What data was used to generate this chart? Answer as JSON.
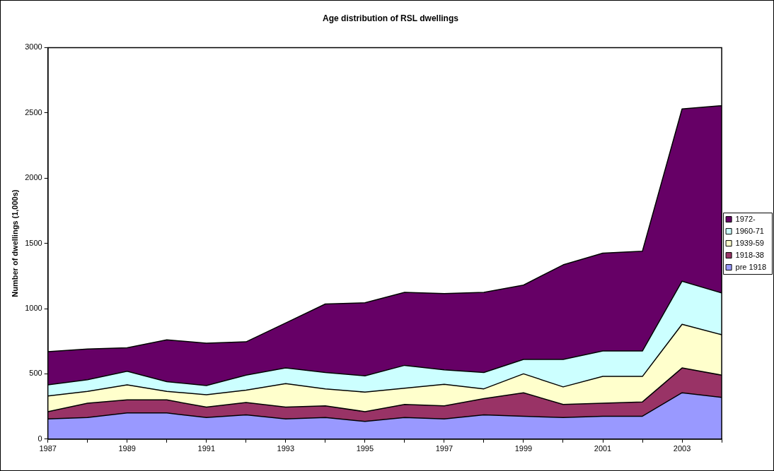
{
  "chart_data": {
    "type": "area",
    "title": "Age distribution of RSL dwellings",
    "ylabel": "Number of dwellings (1,000s)",
    "stacked": true,
    "legend": "right",
    "x": [
      1987,
      1988,
      1989,
      1990,
      1991,
      1992,
      1993,
      1994,
      1995,
      1996,
      1997,
      1998,
      1999,
      2000,
      2001,
      2002,
      2003,
      2004
    ],
    "xlim": [
      1987,
      2004
    ],
    "xticks": [
      1987,
      {
        "value": 1988,
        "label": null
      },
      1989,
      {
        "value": 1990,
        "label": null
      },
      1991,
      {
        "value": 1992,
        "label": null
      },
      1993,
      {
        "value": 1994,
        "label": null
      },
      1995,
      {
        "value": 1996,
        "label": null
      },
      1997,
      {
        "value": 1998,
        "label": null
      },
      1999,
      {
        "value": 2000,
        "label": null
      },
      2001,
      {
        "value": 2002,
        "label": null
      },
      2003,
      {
        "value": 2004,
        "label": null
      }
    ],
    "ylim": [
      0,
      3000
    ],
    "yticks": [
      0,
      500,
      1000,
      1500,
      2000,
      2500,
      3000
    ],
    "series": [
      {
        "name": "pre 1918",
        "color": "#9999ff",
        "values": [
          155,
          165,
          200,
          200,
          165,
          185,
          155,
          165,
          135,
          165,
          155,
          185,
          175,
          165,
          175,
          175,
          355,
          320
        ]
      },
      {
        "name": "1918-38",
        "color": "#993366",
        "values": [
          55,
          110,
          100,
          100,
          80,
          95,
          90,
          90,
          75,
          100,
          100,
          125,
          180,
          100,
          100,
          110,
          190,
          170
        ]
      },
      {
        "name": "1939-59",
        "color": "#ffffcc",
        "values": [
          120,
          90,
          115,
          65,
          95,
          95,
          180,
          130,
          150,
          125,
          165,
          75,
          145,
          135,
          205,
          195,
          335,
          310
        ]
      },
      {
        "name": "1960-71",
        "color": "#ccffff",
        "values": [
          85,
          90,
          105,
          75,
          70,
          115,
          120,
          125,
          125,
          175,
          110,
          125,
          110,
          210,
          195,
          195,
          330,
          320
        ]
      },
      {
        "name": "1972-",
        "color": "#660066",
        "values": [
          255,
          235,
          180,
          320,
          325,
          255,
          345,
          525,
          560,
          560,
          585,
          615,
          570,
          725,
          750,
          765,
          1320,
          1435
        ]
      }
    ]
  }
}
